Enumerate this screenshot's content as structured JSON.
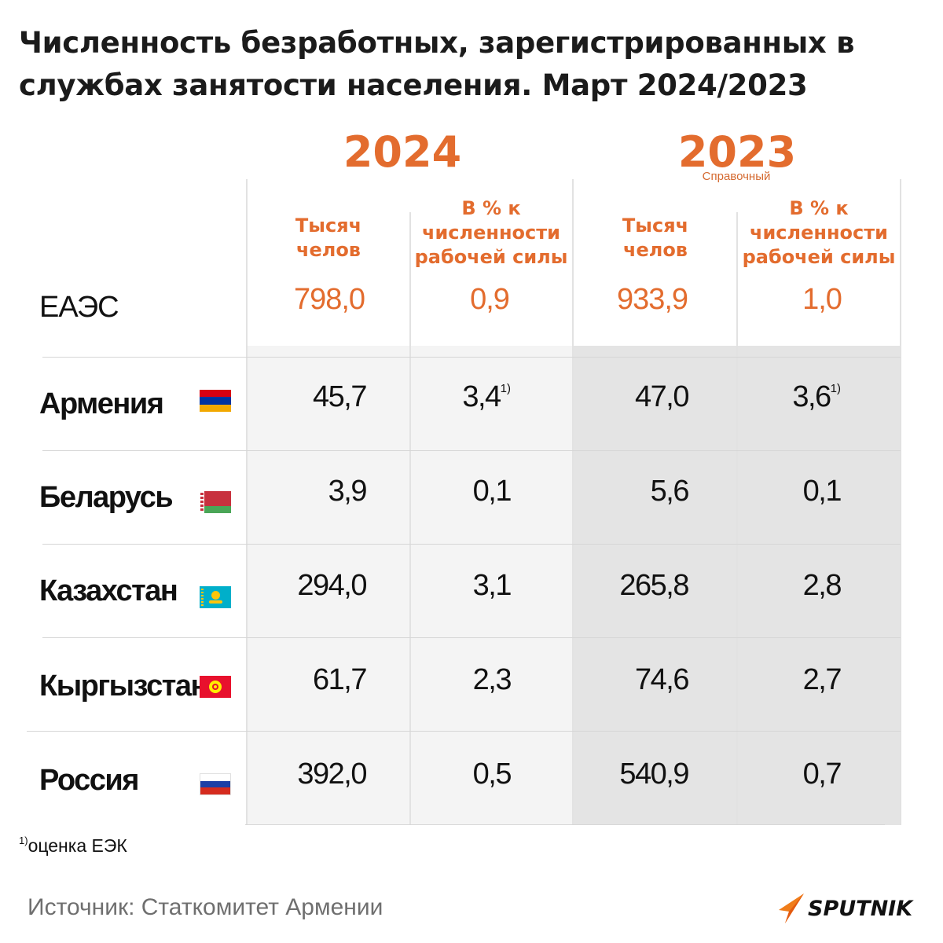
{
  "title": "Численность безработных, зарегистрированных в службах занятости населения. Март 2024/2023",
  "chart_data": {
    "type": "table",
    "title": "Численность безработных, зарегистрированных в службах занятости населения. Март 2024/2023",
    "years": [
      {
        "year": "2024",
        "note": ""
      },
      {
        "year": "2023",
        "note": "Справочный"
      }
    ],
    "columns": [
      {
        "year": "2024",
        "label_lines": [
          "Тысяч",
          "челов"
        ]
      },
      {
        "year": "2024",
        "label_lines": [
          "В % к",
          "численности",
          "рабочей силы"
        ]
      },
      {
        "year": "2023",
        "label_lines": [
          "Тысяч",
          "челов"
        ]
      },
      {
        "year": "2023",
        "label_lines": [
          "В % к",
          "численности",
          "рабочей силы"
        ]
      }
    ],
    "total": {
      "name": "ЕАЭС",
      "values": [
        "798,0",
        "0,9",
        "933,9",
        "1,0"
      ]
    },
    "rows": [
      {
        "name": "Армения",
        "flag": "armenia-flag",
        "values": [
          "45,7",
          "3,4",
          "47,0",
          "3,6"
        ],
        "marks": [
          "",
          "1)",
          "",
          "1)"
        ]
      },
      {
        "name": "Беларусь",
        "flag": "belarus-flag",
        "values": [
          "3,9",
          "0,1",
          "5,6",
          "0,1"
        ],
        "marks": [
          "",
          "",
          "",
          ""
        ]
      },
      {
        "name": "Казахстан",
        "flag": "kazakhstan-flag",
        "values": [
          "294,0",
          "3,1",
          "265,8",
          "2,8"
        ],
        "marks": [
          "",
          "",
          "",
          ""
        ]
      },
      {
        "name": "Кыргызстан",
        "flag": "kyrgyzstan-flag",
        "values": [
          "61,7",
          "2,3",
          "74,6",
          "2,7"
        ],
        "marks": [
          "",
          "",
          "",
          ""
        ]
      },
      {
        "name": "Россия",
        "flag": "russia-flag",
        "values": [
          "392,0",
          "0,5",
          "540,9",
          "0,7"
        ],
        "marks": [
          "",
          "",
          "",
          ""
        ]
      }
    ]
  },
  "footnote": {
    "mark": "1)",
    "text": "оценка ЕЭК"
  },
  "source": "Источник: Статкомитет Армении",
  "brand": "SPUTNIK",
  "colors": {
    "accent": "#e36c2e",
    "text": "#111111",
    "source": "#6f6f6f"
  }
}
